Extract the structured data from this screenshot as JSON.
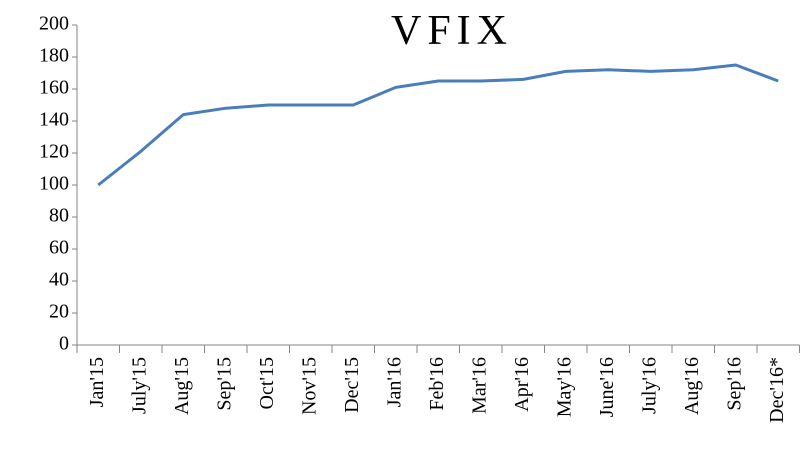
{
  "chart_data": {
    "type": "line",
    "title": "VFIX",
    "categories": [
      "Jan'15",
      "July'15",
      "Aug'15",
      "Sep'15",
      "Oct'15",
      "Nov'15",
      "Dec'15",
      "Jan'16",
      "Feb'16",
      "Mar'16",
      "Apr'16",
      "May'16",
      "June'16",
      "July'16",
      "Aug'16",
      "Sep'16",
      "Dec'16*"
    ],
    "values": [
      100,
      121,
      144,
      148,
      150,
      150,
      150,
      161,
      165,
      165,
      166,
      171,
      172,
      171,
      172,
      175,
      165
    ],
    "color": "#4a7ebb",
    "ylim": [
      0,
      200
    ],
    "yticks": [
      0,
      20,
      40,
      60,
      80,
      100,
      120,
      140,
      160,
      180,
      200
    ],
    "grid": false
  }
}
